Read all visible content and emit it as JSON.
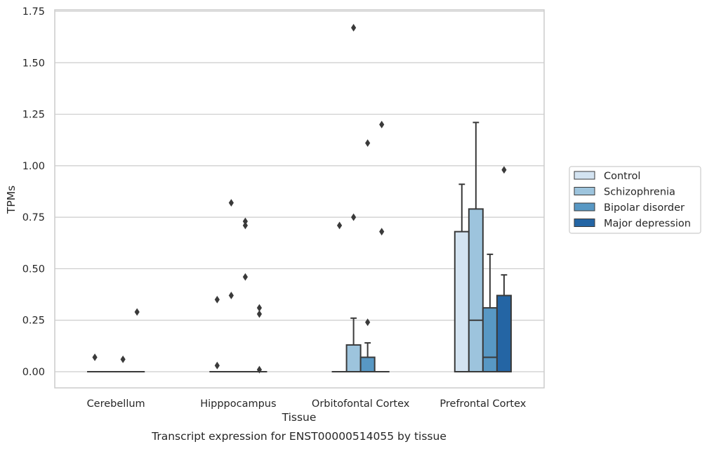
{
  "chart_data": {
    "type": "boxplot",
    "title": "",
    "xlabel": "Tissue",
    "ylabel": "TPMs",
    "caption": "Transcript expression for ENST00000514055 by tissue",
    "ylim": [
      -0.08,
      1.76
    ],
    "yticks": [
      "0.00",
      "0.25",
      "0.50",
      "0.75",
      "1.00",
      "1.25",
      "1.50",
      "1.75"
    ],
    "ytick_values": [
      0,
      0.25,
      0.5,
      0.75,
      1.0,
      1.25,
      1.5,
      1.75
    ],
    "grid": "horizontal",
    "legend_placement": "outside-right",
    "categories": [
      "Cerebellum",
      "Hipppocampus",
      "Orbitofontal Cortex",
      "Prefrontal Cortex"
    ],
    "series": [
      {
        "name": "Control",
        "color": "#d3e3f1",
        "boxes": [
          {
            "q1": 0,
            "median": 0,
            "q3": 0,
            "whisker_low": 0,
            "whisker_high": 0,
            "outliers": [
              0.07
            ]
          },
          {
            "q1": 0,
            "median": 0,
            "q3": 0,
            "whisker_low": 0,
            "whisker_high": 0,
            "outliers": [
              0.35,
              0.03
            ]
          },
          {
            "q1": 0,
            "median": 0,
            "q3": 0,
            "whisker_low": 0,
            "whisker_high": 0,
            "outliers": [
              0.71
            ]
          },
          {
            "q1": 0,
            "median": 0,
            "q3": 0.68,
            "whisker_low": 0,
            "whisker_high": 0.91,
            "outliers": []
          }
        ]
      },
      {
        "name": "Schizophrenia",
        "color": "#9dc4dd",
        "boxes": [
          {
            "q1": 0,
            "median": 0,
            "q3": 0,
            "whisker_low": 0,
            "whisker_high": 0,
            "outliers": []
          },
          {
            "q1": 0,
            "median": 0,
            "q3": 0,
            "whisker_low": 0,
            "whisker_high": 0,
            "outliers": [
              0.82,
              0.37
            ]
          },
          {
            "q1": 0,
            "median": 0,
            "q3": 0.13,
            "whisker_low": 0,
            "whisker_high": 0.26,
            "outliers": [
              1.67,
              0.75
            ]
          },
          {
            "q1": 0,
            "median": 0.25,
            "q3": 0.79,
            "whisker_low": 0,
            "whisker_high": 1.21,
            "outliers": []
          }
        ]
      },
      {
        "name": "Bipolar disorder",
        "color": "#5898c4",
        "boxes": [
          {
            "q1": 0,
            "median": 0,
            "q3": 0,
            "whisker_low": 0,
            "whisker_high": 0,
            "outliers": [
              0.06
            ]
          },
          {
            "q1": 0,
            "median": 0,
            "q3": 0,
            "whisker_low": 0,
            "whisker_high": 0,
            "outliers": [
              0.73,
              0.71,
              0.46
            ]
          },
          {
            "q1": 0,
            "median": 0,
            "q3": 0.07,
            "whisker_low": 0,
            "whisker_high": 0.14,
            "outliers": [
              1.11,
              0.24
            ]
          },
          {
            "q1": 0,
            "median": 0.07,
            "q3": 0.31,
            "whisker_low": 0,
            "whisker_high": 0.57,
            "outliers": []
          }
        ]
      },
      {
        "name": "Major depression",
        "color": "#2465a4",
        "boxes": [
          {
            "q1": 0,
            "median": 0,
            "q3": 0,
            "whisker_low": 0,
            "whisker_high": 0,
            "outliers": [
              0.29
            ]
          },
          {
            "q1": 0,
            "median": 0,
            "q3": 0,
            "whisker_low": 0,
            "whisker_high": 0,
            "outliers": [
              0.31,
              0.28,
              0.01
            ]
          },
          {
            "q1": 0,
            "median": 0,
            "q3": 0,
            "whisker_low": 0,
            "whisker_high": 0,
            "outliers": [
              1.2,
              0.68
            ]
          },
          {
            "q1": 0,
            "median": 0,
            "q3": 0.37,
            "whisker_low": 0,
            "whisker_high": 0.47,
            "outliers": [
              0.98
            ]
          }
        ]
      }
    ]
  }
}
